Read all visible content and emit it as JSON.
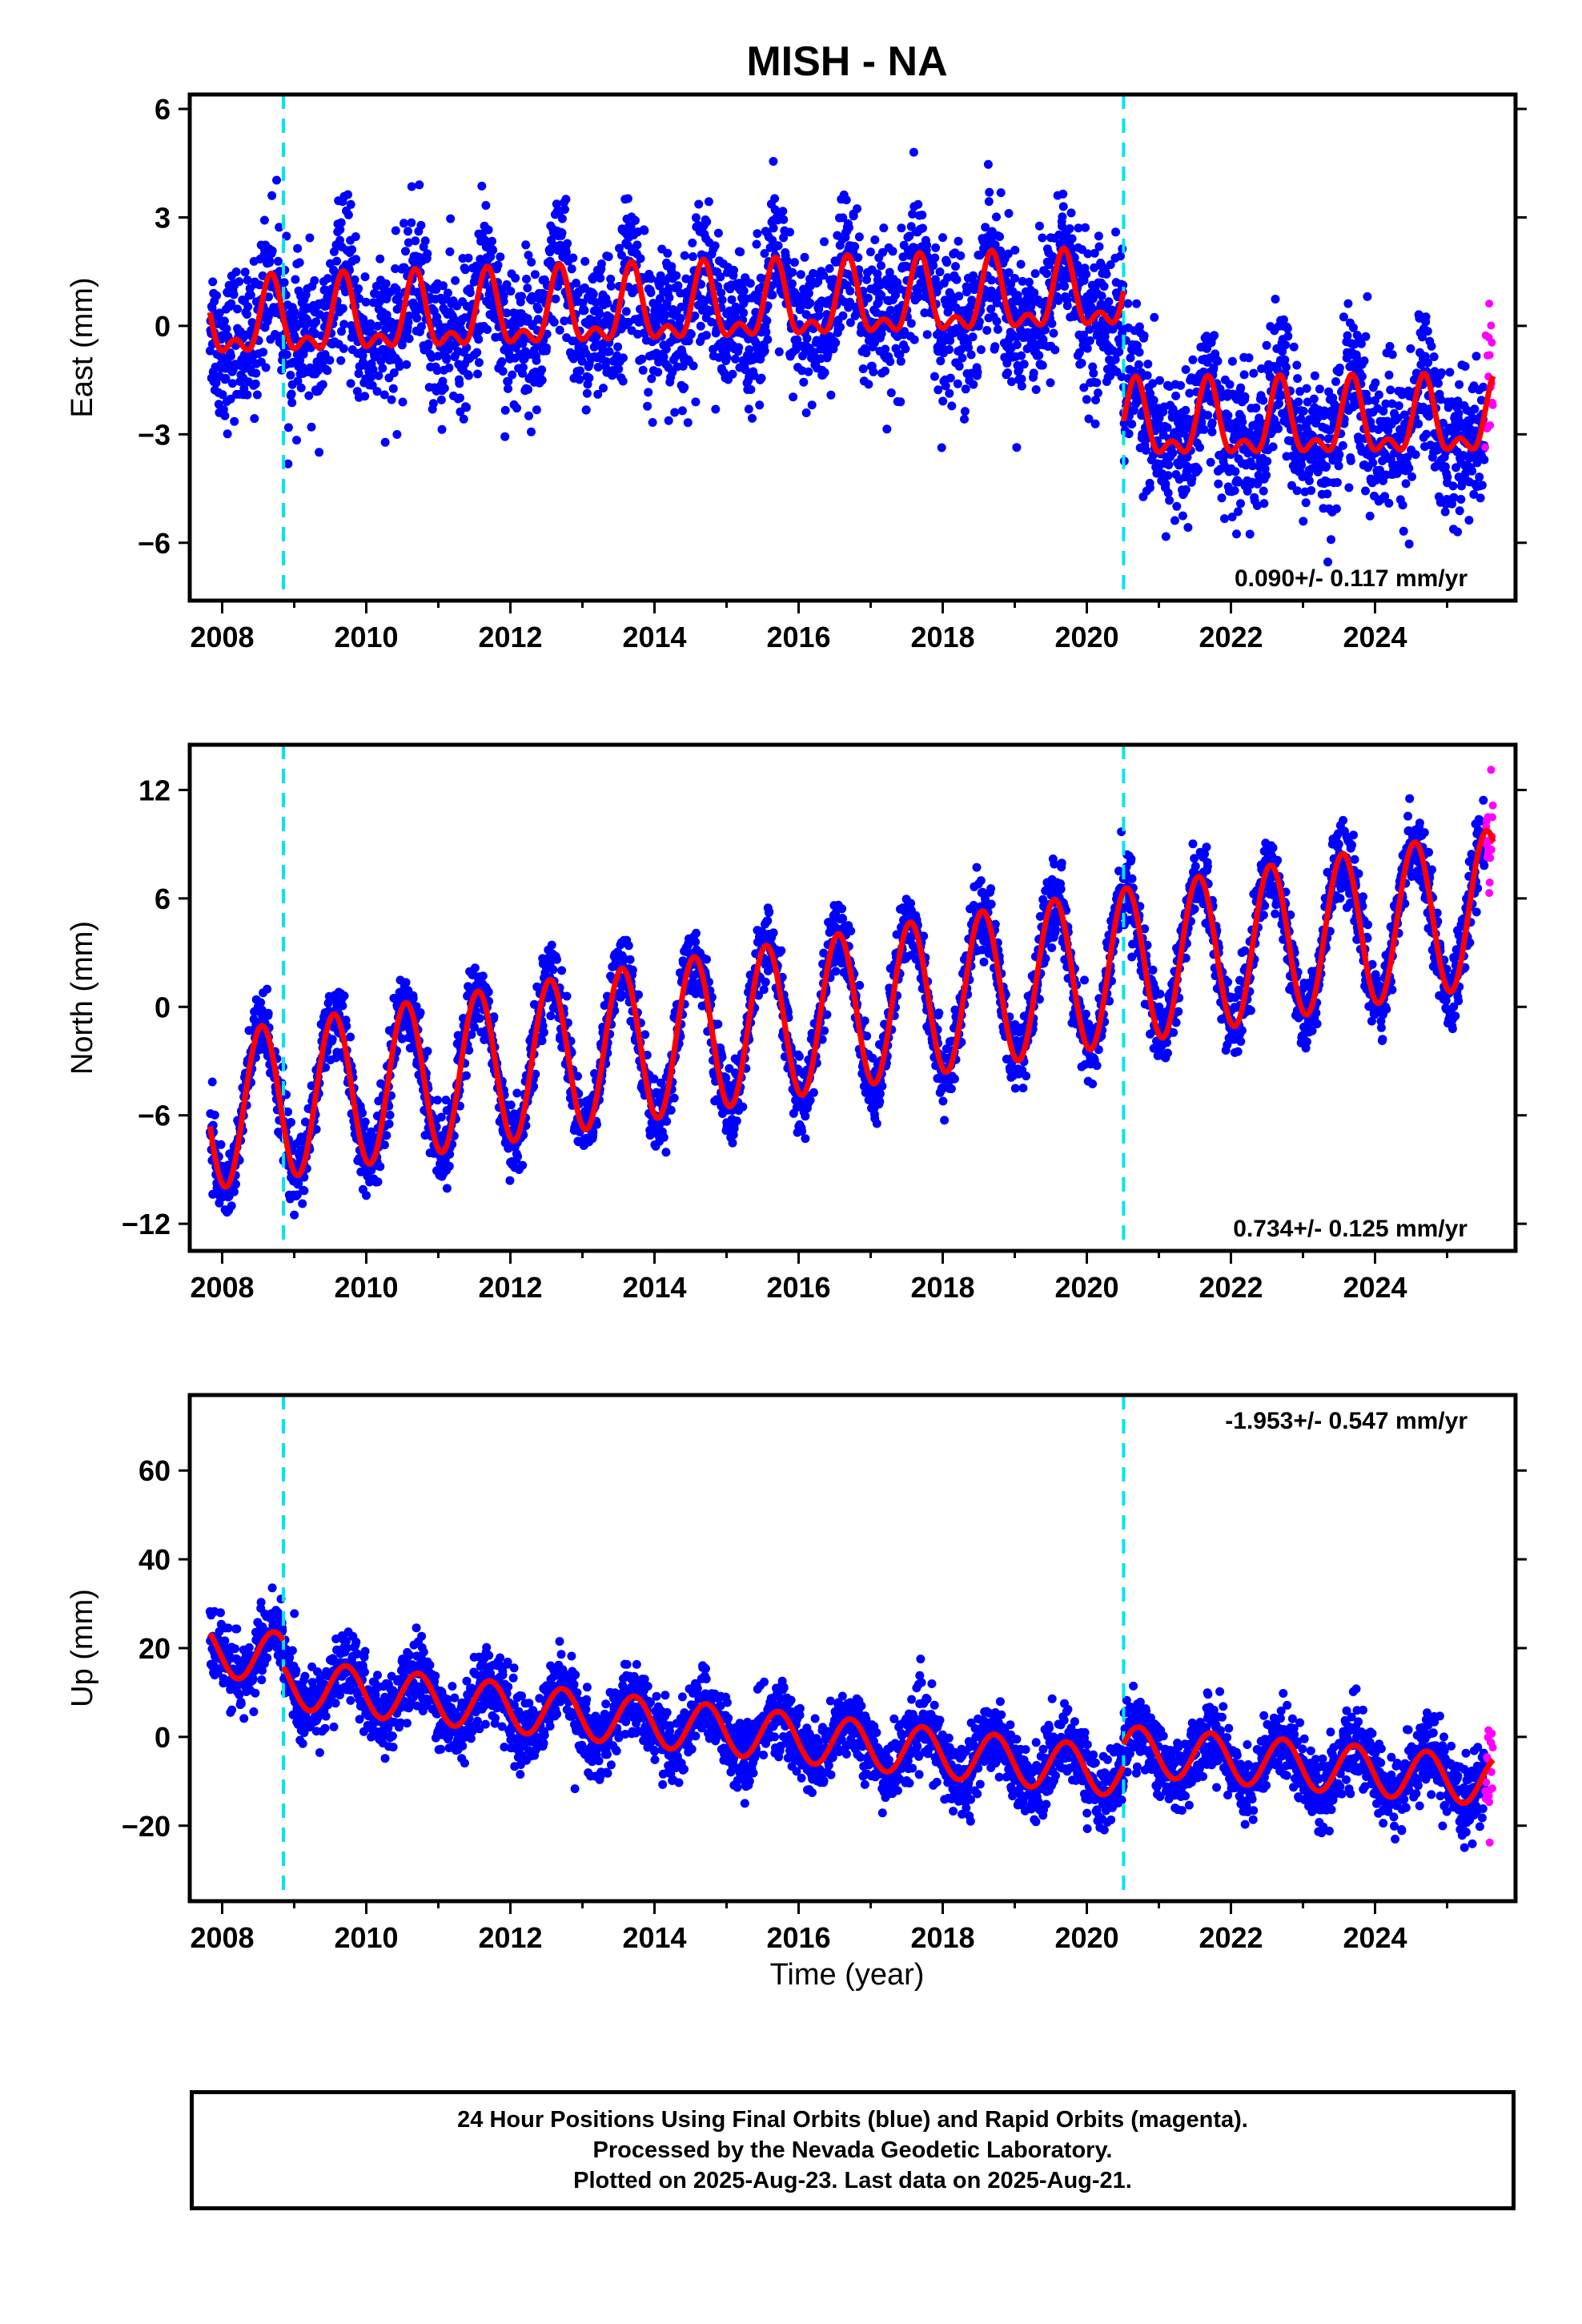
{
  "title": "MISH - NA",
  "xlabel": "Time (year)",
  "footer": [
    "24 Hour Positions Using Final Orbits (blue) and Rapid Orbits (magenta).",
    "Processed by the Nevada Geodetic Laboratory.",
    "Plotted on 2025-Aug-23. Last data on 2025-Aug-21."
  ],
  "colors": {
    "final_orbits": "#0000ff",
    "rapid_orbits": "#ff00ff",
    "model_fit": "#ff0000",
    "offset_lines": "#00e5ee"
  },
  "chart_data": [
    {
      "type": "scatter",
      "ylabel": "East (mm)",
      "rate_label": "0.090+/- 0.117 mm/yr",
      "rate_position": "bottom-right",
      "xlim": [
        2007.55,
        2025.95
      ],
      "ylim": [
        -7.6,
        6.4
      ],
      "yticks": [
        -6,
        -3,
        0,
        3,
        6
      ],
      "xticks": [
        2008,
        2010,
        2012,
        2014,
        2016,
        2018,
        2020,
        2022,
        2024
      ],
      "offset_epochs": [
        2008.85,
        2020.51
      ],
      "data_range": [
        2007.83,
        2025.52
      ],
      "rapid_range": [
        2025.53,
        2025.64
      ],
      "model": {
        "segments": [
          {
            "from": 2007.83,
            "to": 2020.51,
            "base_at_start": 0.0,
            "base_at_end": 0.8
          },
          {
            "from": 2020.51,
            "to": 2025.64,
            "base_at_start": -2.8,
            "base_at_end": -2.7
          }
        ],
        "annual_amplitude": 0.9,
        "semiannual_amplitude": 0.5,
        "peak_phase_year": 0.68
      },
      "scatter_sigma": 1.0
    },
    {
      "type": "scatter",
      "ylabel": "North (mm)",
      "rate_label": "0.734+/- 0.125 mm/yr",
      "rate_position": "bottom-right",
      "xlim": [
        2007.55,
        2025.95
      ],
      "ylim": [
        -13.5,
        14.5
      ],
      "yticks": [
        -12,
        -6,
        0,
        6,
        12
      ],
      "xticks": [
        2008,
        2010,
        2012,
        2014,
        2016,
        2018,
        2020,
        2022,
        2024
      ],
      "offset_epochs": [
        2008.85,
        2020.51
      ],
      "data_range": [
        2007.83,
        2025.52
      ],
      "rapid_range": [
        2025.53,
        2025.64
      ],
      "model": {
        "segments": [
          {
            "from": 2007.83,
            "to": 2025.64,
            "base_at_start": -5.8,
            "base_at_end": 5.5
          }
        ],
        "annual_amplitude": 4.3,
        "semiannual_amplitude": 0.0,
        "peak_phase_year": 0.55
      },
      "scatter_sigma": 1.0
    },
    {
      "type": "scatter",
      "ylabel": "Up (mm)",
      "rate_label": "-1.953+/- 0.547 mm/yr",
      "rate_position": "top-right",
      "xlim": [
        2007.55,
        2025.95
      ],
      "ylim": [
        -37,
        77
      ],
      "yticks": [
        -20,
        0,
        20,
        40,
        60
      ],
      "xticks": [
        2008,
        2010,
        2012,
        2014,
        2016,
        2018,
        2020,
        2022,
        2024
      ],
      "offset_epochs": [
        2008.85,
        2020.51
      ],
      "data_range": [
        2007.83,
        2025.52
      ],
      "rapid_range": [
        2025.53,
        2025.64
      ],
      "model": {
        "segments": [
          {
            "from": 2007.83,
            "to": 2008.85,
            "base_at_start": 19.0,
            "base_at_end": 18.0
          },
          {
            "from": 2008.85,
            "to": 2020.51,
            "base_at_start": 12.0,
            "base_at_end": -8.0
          },
          {
            "from": 2020.51,
            "to": 2025.64,
            "base_at_start": -3.0,
            "base_at_end": -10.0
          }
        ],
        "annual_amplitude": 5.5,
        "semiannual_amplitude": 0.0,
        "peak_phase_year": 0.72
      },
      "scatter_sigma": 4.0
    }
  ]
}
